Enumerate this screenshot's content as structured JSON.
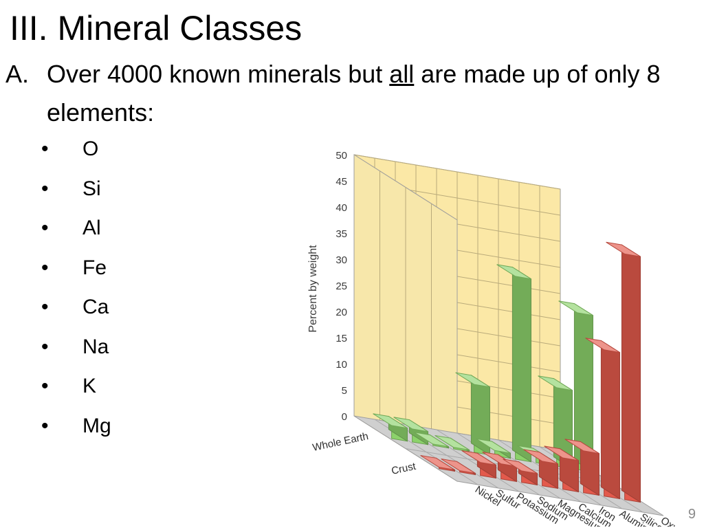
{
  "slide": {
    "title": "III. Mineral Classes",
    "point_marker": "A.",
    "point_text_before": "Over 4000 known minerals but ",
    "point_text_emphasis": "all",
    "point_text_after": " are made up of only 8 elements:",
    "bullet_glyph": "•",
    "bullets": [
      "O",
      "Si",
      "Al",
      "Fe",
      "Ca",
      "Na",
      "K",
      "Mg"
    ],
    "page_number": "9"
  },
  "chart_data": {
    "type": "bar",
    "style": "3d-grouped",
    "ylabel": "Percent by weight",
    "ylim": [
      0,
      50
    ],
    "yticks": [
      "0",
      "5",
      "10",
      "15",
      "20",
      "25",
      "30",
      "35",
      "40",
      "45",
      "50"
    ],
    "grid": true,
    "categories": [
      "Nickel",
      "Sulfur",
      "Potassium",
      "Sodium",
      "Magnesium",
      "Calcium",
      "Iron",
      "Aluminum",
      "Silicon",
      "Oxygen"
    ],
    "series": [
      {
        "name": "Whole Earth",
        "color": "#8cd26b",
        "values": [
          2.5,
          2.5,
          0.2,
          0.3,
          13,
          1,
          35,
          1,
          15,
          30
        ]
      },
      {
        "name": "Crust",
        "color": "#e35a4c",
        "values": [
          0.2,
          0.2,
          2.5,
          2.9,
          2.2,
          4.7,
          6,
          8,
          28,
          47
        ]
      }
    ]
  }
}
